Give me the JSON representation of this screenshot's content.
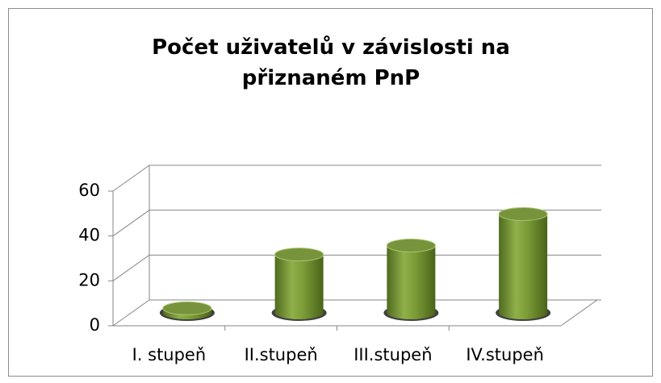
{
  "chart_data": {
    "type": "bar",
    "title": "Počet uživatelů v závislosti na přiznaném PnP",
    "categories": [
      "I. stupeň",
      "II.stupeň",
      "III.stupeň",
      "IV.stupeň"
    ],
    "values": [
      2,
      26,
      30,
      44
    ],
    "color": "#77933c",
    "ylim": [
      0,
      60
    ],
    "yticks": [
      0,
      20,
      40,
      60
    ],
    "grid": true
  }
}
